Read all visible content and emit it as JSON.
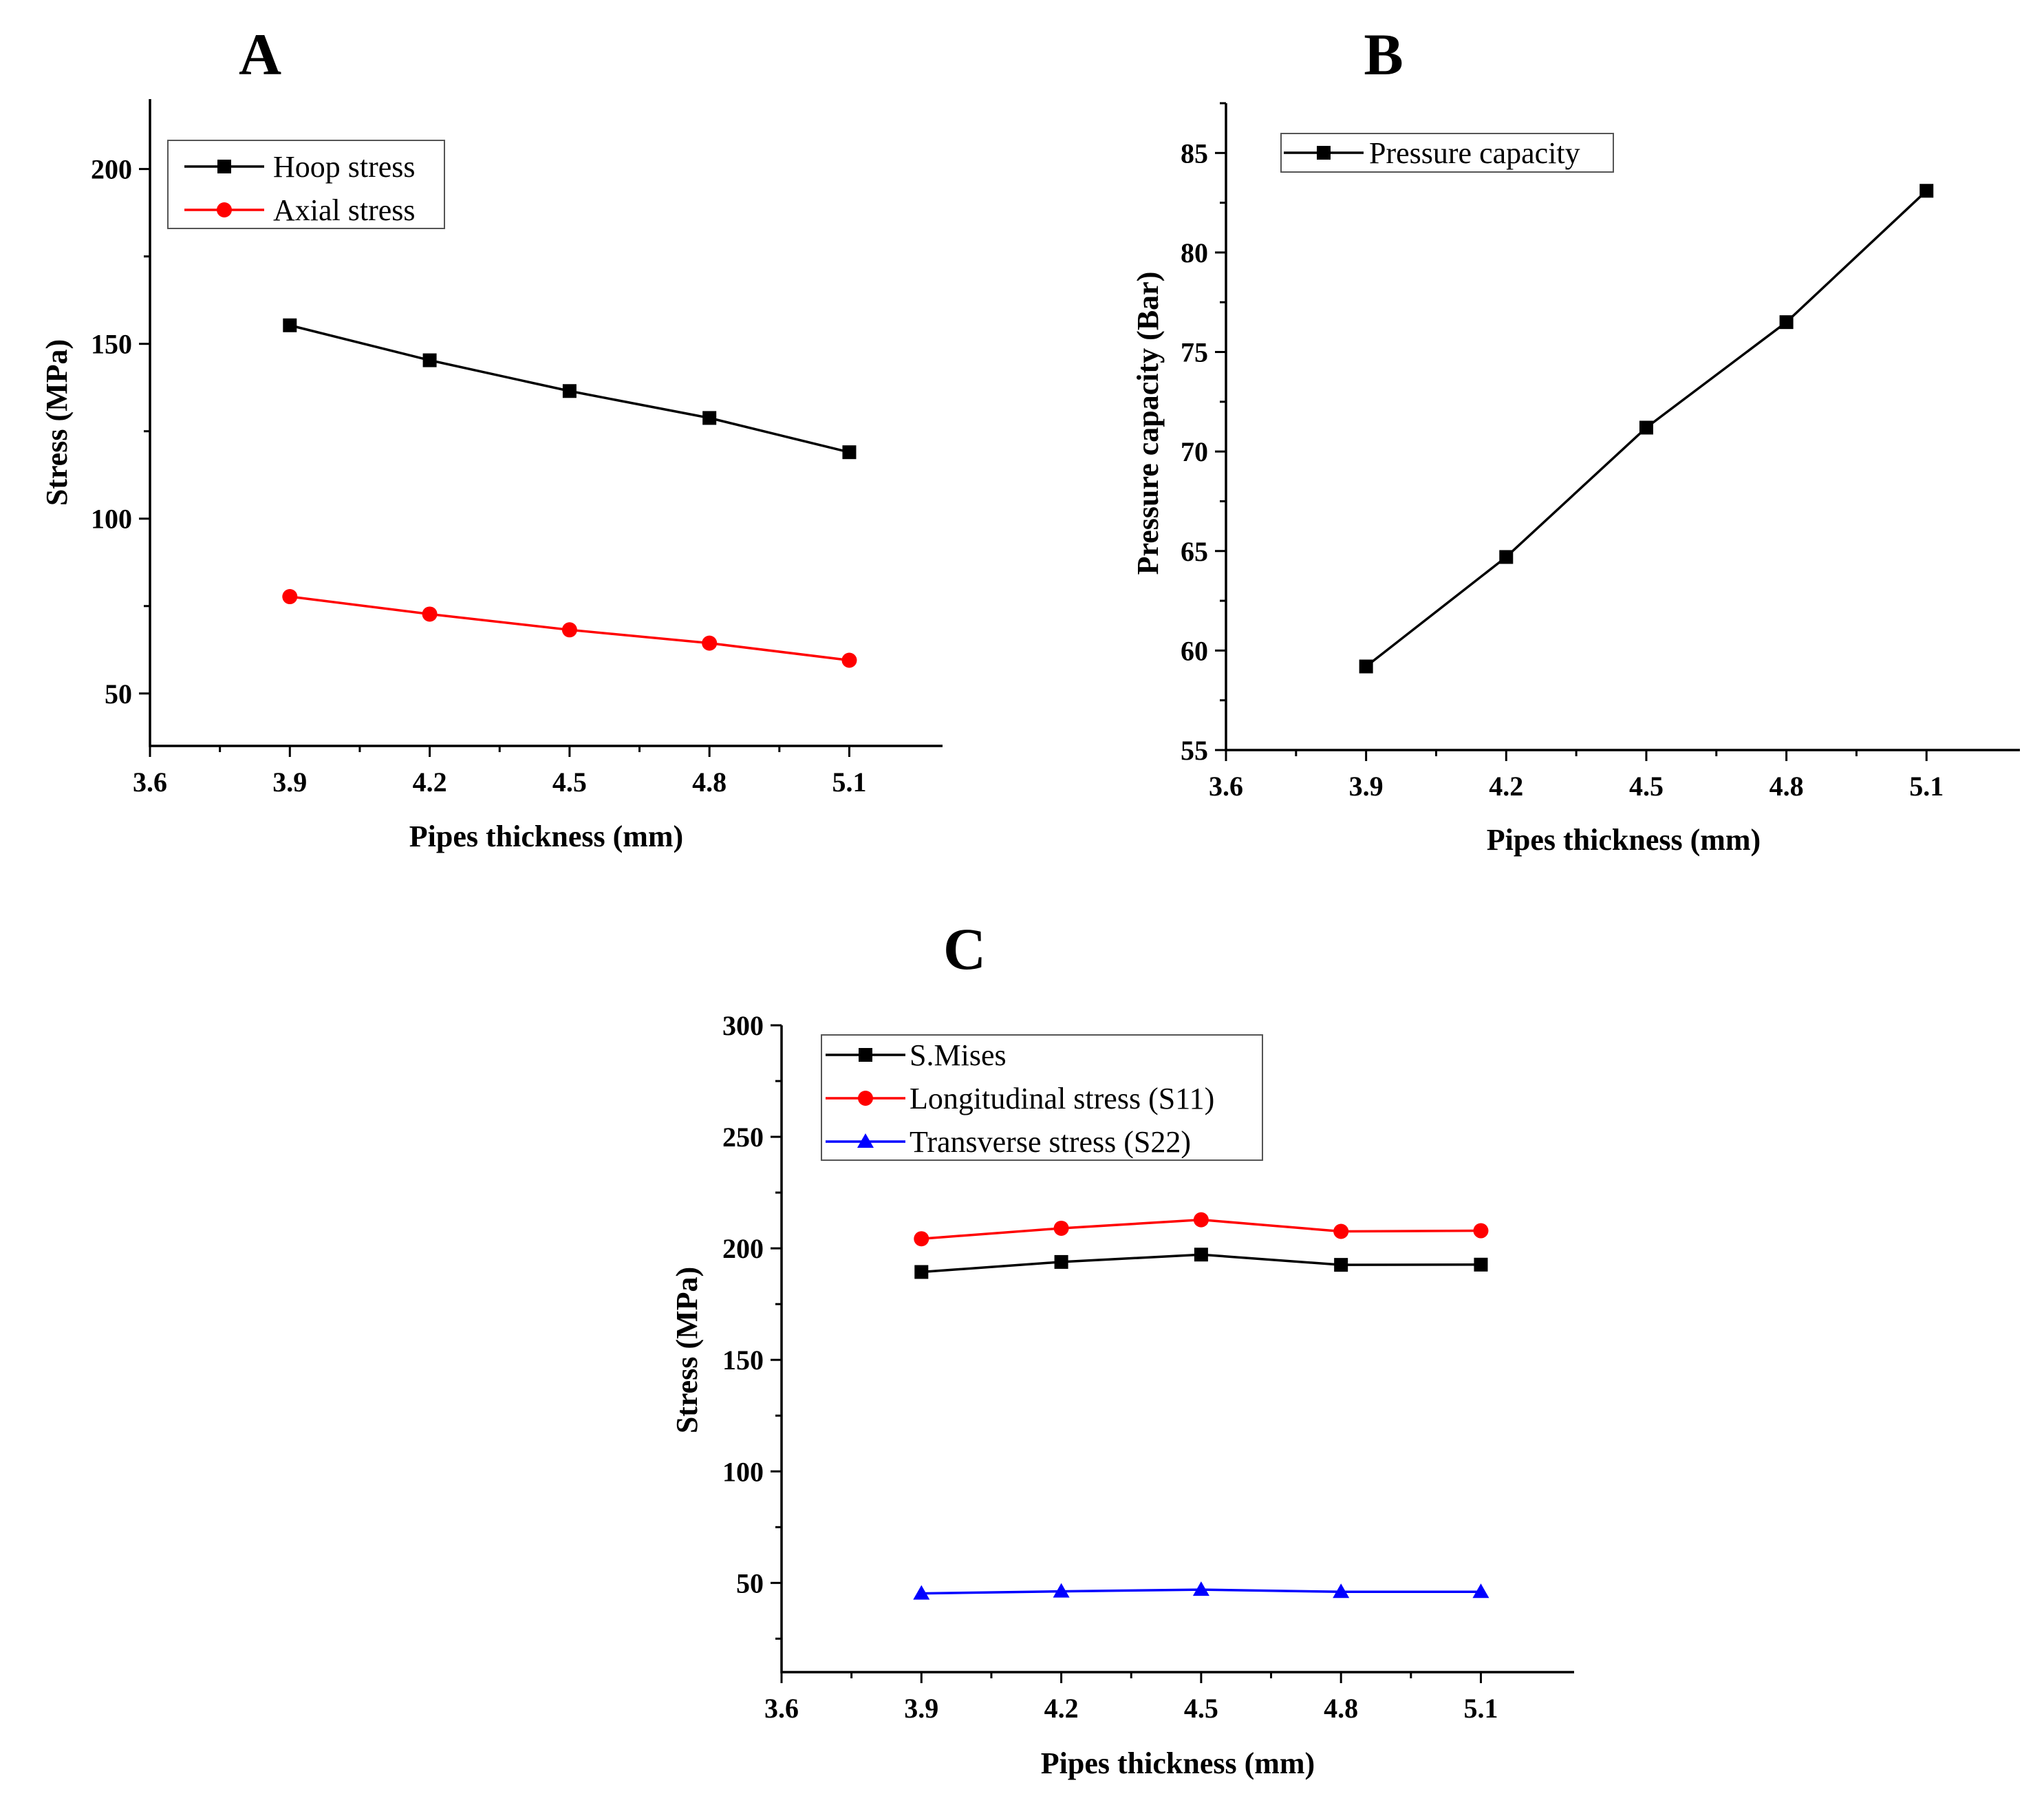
{
  "chart_data": [
    {
      "id": "A",
      "panel_label": "A",
      "type": "line",
      "xlabel": "Pipes thickness (mm)",
      "ylabel": "Stress (MPa)",
      "xlim": [
        3.6,
        5.3
      ],
      "ylim": [
        35,
        220
      ],
      "xticks": [
        3.6,
        3.9,
        4.2,
        4.5,
        4.8,
        5.1
      ],
      "yticks": [
        50,
        100,
        150,
        200
      ],
      "x": [
        3.9,
        4.2,
        4.5,
        4.8,
        5.1
      ],
      "legend_position": "top-left",
      "series": [
        {
          "name": "Hoop stress",
          "color": "#000000",
          "marker": "square",
          "values": [
            155.3,
            145.3,
            136.5,
            128.8,
            119.0
          ]
        },
        {
          "name": "Axial stress",
          "color": "#ff0000",
          "marker": "circle",
          "values": [
            77.7,
            72.7,
            68.2,
            64.4,
            59.5
          ]
        }
      ]
    },
    {
      "id": "B",
      "panel_label": "B",
      "type": "line",
      "xlabel": "Pipes thickness (mm)",
      "ylabel": "Pressure capacity (Bar)",
      "xlim": [
        3.6,
        5.3
      ],
      "ylim": [
        55,
        87.5
      ],
      "xticks": [
        3.6,
        3.9,
        4.2,
        4.5,
        4.8,
        5.1
      ],
      "yticks": [
        55,
        60,
        65,
        70,
        75,
        80,
        85
      ],
      "x": [
        3.9,
        4.2,
        4.5,
        4.8,
        5.1
      ],
      "legend_position": "top-left",
      "series": [
        {
          "name": "Pressure capacity",
          "color": "#000000",
          "marker": "square",
          "values": [
            59.2,
            64.7,
            71.2,
            76.5,
            83.1
          ]
        }
      ]
    },
    {
      "id": "C",
      "panel_label": "C",
      "type": "line",
      "xlabel": "Pipes thickness (mm)",
      "ylabel": "Stress (MPa)",
      "xlim": [
        3.6,
        5.3
      ],
      "ylim": [
        10,
        300
      ],
      "xticks": [
        3.6,
        3.9,
        4.2,
        4.5,
        4.8,
        5.1
      ],
      "yticks": [
        50,
        100,
        150,
        200,
        250,
        300
      ],
      "x": [
        3.9,
        4.2,
        4.5,
        4.8,
        5.1
      ],
      "legend_position": "top-left",
      "series": [
        {
          "name": "S.Mises",
          "color": "#000000",
          "marker": "square",
          "values": [
            189.4,
            193.9,
            197.2,
            192.6,
            192.7
          ]
        },
        {
          "name": "Longitudinal stress (S11)",
          "color": "#ff0000",
          "marker": "circle",
          "values": [
            204.3,
            209.0,
            212.8,
            207.6,
            207.9
          ]
        },
        {
          "name": "Transverse stress (S22)",
          "color": "#0000ff",
          "marker": "triangle",
          "values": [
            45.3,
            46.2,
            47.0,
            46.0,
            46.0
          ]
        }
      ]
    }
  ]
}
